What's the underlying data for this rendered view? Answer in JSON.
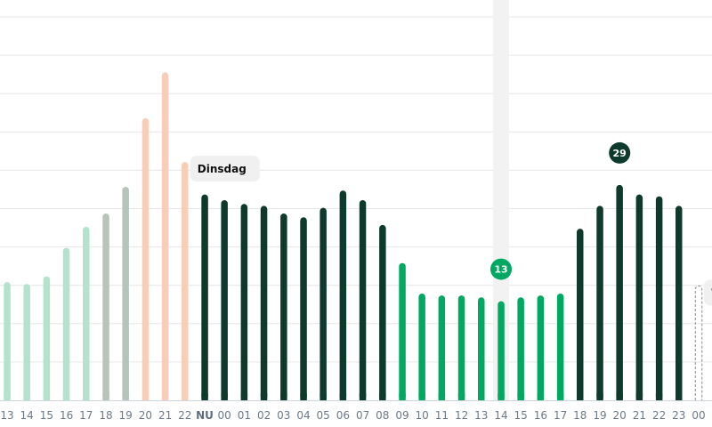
{
  "chart_data": {
    "type": "bar",
    "categories": [
      "13",
      "14",
      "15",
      "16",
      "17",
      "18",
      "19",
      "20",
      "21",
      "22",
      "NU",
      "00",
      "01",
      "02",
      "03",
      "04",
      "05",
      "06",
      "07",
      "08",
      "09",
      "10",
      "11",
      "12",
      "13",
      "14",
      "15",
      "16",
      "17",
      "18",
      "19",
      "20",
      "21",
      "22",
      "23",
      "00"
    ],
    "values": [
      31,
      30.5,
      32.5,
      40,
      45.5,
      49,
      56,
      74,
      86,
      62.5,
      54,
      52.5,
      51.5,
      51,
      49,
      48,
      50.5,
      55,
      52.5,
      46,
      36,
      28,
      27.5,
      27.5,
      27,
      26,
      27,
      27.5,
      28,
      45,
      51,
      56.5,
      54,
      53.5,
      51,
      30
    ],
    "status": [
      "past",
      "past",
      "past",
      "past",
      "past",
      "past",
      "past",
      "past",
      "past",
      "past",
      "now",
      "future",
      "future",
      "future",
      "future",
      "future",
      "future",
      "future",
      "future",
      "future",
      "future",
      "future",
      "future",
      "future",
      "future",
      "future",
      "future",
      "future",
      "future",
      "future",
      "future",
      "future",
      "future",
      "future",
      "future",
      "forecast"
    ],
    "ylim": [
      0,
      105
    ],
    "grid": true,
    "colors": {
      "past_low": "#b3e3cc",
      "past_mid": "#b6c4bc",
      "past_high": "#f7cfb9",
      "dark": "#0d3a2c",
      "green": "#00a862",
      "highlight_band": "#f2f2f2",
      "dashed": "#8a8a8a"
    },
    "highlight_index": 25,
    "day_labels": [
      {
        "text": "Dinsdag",
        "index": 9
      },
      {
        "text": "Woensdag",
        "index": 35
      }
    ],
    "badges": [
      {
        "text": "13",
        "index": 25,
        "color": "#00a862"
      },
      {
        "text": "29",
        "index": 31,
        "color": "#0d3a2c"
      }
    ]
  }
}
